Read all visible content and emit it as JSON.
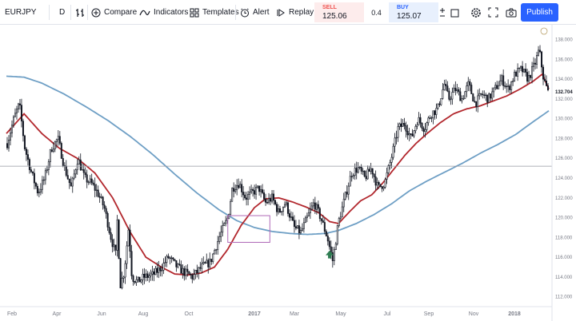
{
  "toolbar": {
    "symbol": "EURJPY",
    "interval": "D",
    "compare_label": "Compare",
    "indicators_label": "Indicators",
    "templates_label": "Templates",
    "alert_label": "Alert",
    "replay_label": "Replay",
    "publish_label": "Publish",
    "icons": [
      "bars-style-icon",
      "compare-plus-icon",
      "indicators-icon",
      "templates-icon",
      "alert-clock-icon",
      "replay-icon",
      "settings-icon",
      "fullscreen-icon",
      "camera-icon"
    ]
  },
  "trade": {
    "sell_label": "SELL",
    "sell_price": "125.06",
    "spread": "0.4",
    "buy_label": "BUY",
    "buy_price": "125.07"
  },
  "colors": {
    "sell": "#ef5350",
    "buy": "#2962ff",
    "candles": "#131722",
    "ma_fast": "#b2272d",
    "ma_slow": "#6e9fc5",
    "horizontal_line": "#9598a1",
    "rectangle": "#b069b8",
    "arrow": "#2e7d52"
  },
  "chart_data": {
    "type": "candlestick",
    "symbol": "EURJPY",
    "interval": "D",
    "title": "",
    "xlabel": "",
    "ylabel": "",
    "ylim": [
      111,
      139.5
    ],
    "y_ticks": [
      "112.000",
      "114.000",
      "116.000",
      "118.000",
      "120.000",
      "122.000",
      "124.000",
      "126.000",
      "128.000",
      "130.000",
      "132.000",
      "134.000",
      "136.000",
      "138.000"
    ],
    "x_ticks": [
      "Feb",
      "Apr",
      "Jun",
      "Aug",
      "Oct",
      "2017",
      "Mar",
      "May",
      "Jul",
      "Sep",
      "Nov",
      "2018"
    ],
    "last_price_label": "132.704",
    "price_path": [
      {
        "m": 0,
        "v": 127.5
      },
      {
        "m": 0.3,
        "v": 130
      },
      {
        "m": 0.55,
        "v": 131.5
      },
      {
        "m": 0.8,
        "v": 127
      },
      {
        "m": 1.1,
        "v": 124.5
      },
      {
        "m": 1.4,
        "v": 122.5
      },
      {
        "m": 1.7,
        "v": 124
      },
      {
        "m": 2.0,
        "v": 127
      },
      {
        "m": 2.3,
        "v": 128
      },
      {
        "m": 2.6,
        "v": 125
      },
      {
        "m": 2.9,
        "v": 123
      },
      {
        "m": 3.2,
        "v": 126
      },
      {
        "m": 3.5,
        "v": 124
      },
      {
        "m": 3.8,
        "v": 123.5
      },
      {
        "m": 4.1,
        "v": 122.5
      },
      {
        "m": 4.4,
        "v": 121
      },
      {
        "m": 4.7,
        "v": 118
      },
      {
        "m": 4.95,
        "v": 116
      },
      {
        "m": 5.0,
        "v": 121
      },
      {
        "m": 5.1,
        "v": 113
      },
      {
        "m": 5.3,
        "v": 114.5
      },
      {
        "m": 5.5,
        "v": 119
      },
      {
        "m": 5.65,
        "v": 114
      },
      {
        "m": 5.9,
        "v": 113.5
      },
      {
        "m": 6.2,
        "v": 114
      },
      {
        "m": 6.6,
        "v": 114.2
      },
      {
        "m": 7.0,
        "v": 115
      },
      {
        "m": 7.3,
        "v": 116
      },
      {
        "m": 7.7,
        "v": 115
      },
      {
        "m": 8.0,
        "v": 114.5
      },
      {
        "m": 8.4,
        "v": 114
      },
      {
        "m": 8.8,
        "v": 115
      },
      {
        "m": 9.2,
        "v": 115.5
      },
      {
        "m": 9.6,
        "v": 118
      },
      {
        "m": 10.0,
        "v": 120
      },
      {
        "m": 10.2,
        "v": 123
      },
      {
        "m": 10.5,
        "v": 123.5
      },
      {
        "m": 10.8,
        "v": 122
      },
      {
        "m": 11.1,
        "v": 122.5
      },
      {
        "m": 11.4,
        "v": 123
      },
      {
        "m": 11.7,
        "v": 121.5
      },
      {
        "m": 12.0,
        "v": 122
      },
      {
        "m": 12.3,
        "v": 120.5
      },
      {
        "m": 12.6,
        "v": 121.5
      },
      {
        "m": 13.0,
        "v": 119
      },
      {
        "m": 13.3,
        "v": 118.5
      },
      {
        "m": 13.6,
        "v": 120
      },
      {
        "m": 13.9,
        "v": 121.5
      },
      {
        "m": 14.2,
        "v": 120
      },
      {
        "m": 14.5,
        "v": 118
      },
      {
        "m": 14.75,
        "v": 115.6
      },
      {
        "m": 15.0,
        "v": 119.5
      },
      {
        "m": 15.3,
        "v": 122
      },
      {
        "m": 15.6,
        "v": 124.5
      },
      {
        "m": 15.9,
        "v": 125
      },
      {
        "m": 16.2,
        "v": 124
      },
      {
        "m": 16.5,
        "v": 125
      },
      {
        "m": 16.8,
        "v": 123
      },
      {
        "m": 17.1,
        "v": 123.5
      },
      {
        "m": 17.4,
        "v": 126
      },
      {
        "m": 17.7,
        "v": 129
      },
      {
        "m": 18.0,
        "v": 129.5
      },
      {
        "m": 18.3,
        "v": 128
      },
      {
        "m": 18.6,
        "v": 130
      },
      {
        "m": 18.9,
        "v": 129
      },
      {
        "m": 19.2,
        "v": 130.5
      },
      {
        "m": 19.5,
        "v": 131
      },
      {
        "m": 19.8,
        "v": 133.5
      },
      {
        "m": 20.0,
        "v": 132
      },
      {
        "m": 20.3,
        "v": 133
      },
      {
        "m": 20.6,
        "v": 132
      },
      {
        "m": 20.9,
        "v": 133.5
      },
      {
        "m": 21.2,
        "v": 131.5
      },
      {
        "m": 21.5,
        "v": 132.5
      },
      {
        "m": 21.8,
        "v": 132
      },
      {
        "m": 22.1,
        "v": 133
      },
      {
        "m": 22.4,
        "v": 134
      },
      {
        "m": 22.7,
        "v": 133
      },
      {
        "m": 23.0,
        "v": 134.5
      },
      {
        "m": 23.3,
        "v": 135
      },
      {
        "m": 23.6,
        "v": 134
      },
      {
        "m": 23.9,
        "v": 135.5
      },
      {
        "m": 24.1,
        "v": 137
      },
      {
        "m": 24.3,
        "v": 134
      },
      {
        "m": 24.5,
        "v": 132.7
      }
    ],
    "ma_fast_path": [
      {
        "m": 0,
        "v": 128.5
      },
      {
        "m": 0.8,
        "v": 130.5
      },
      {
        "m": 1.6,
        "v": 128.5
      },
      {
        "m": 2.4,
        "v": 127
      },
      {
        "m": 3.2,
        "v": 126
      },
      {
        "m": 4.0,
        "v": 124.5
      },
      {
        "m": 4.8,
        "v": 122
      },
      {
        "m": 5.6,
        "v": 118.5
      },
      {
        "m": 6.3,
        "v": 116
      },
      {
        "m": 7.0,
        "v": 115
      },
      {
        "m": 7.6,
        "v": 114.3
      },
      {
        "m": 8.2,
        "v": 114.2
      },
      {
        "m": 8.8,
        "v": 114.4
      },
      {
        "m": 9.4,
        "v": 115
      },
      {
        "m": 10.0,
        "v": 116.8
      },
      {
        "m": 10.6,
        "v": 119.2
      },
      {
        "m": 11.2,
        "v": 121
      },
      {
        "m": 11.7,
        "v": 121.9
      },
      {
        "m": 12.3,
        "v": 122
      },
      {
        "m": 12.9,
        "v": 121.6
      },
      {
        "m": 13.5,
        "v": 121.1
      },
      {
        "m": 14.1,
        "v": 120.5
      },
      {
        "m": 14.6,
        "v": 119.6
      },
      {
        "m": 15.0,
        "v": 119.4
      },
      {
        "m": 15.5,
        "v": 120.6
      },
      {
        "m": 16.0,
        "v": 121.7
      },
      {
        "m": 16.5,
        "v": 122.3
      },
      {
        "m": 17.0,
        "v": 123.5
      },
      {
        "m": 17.5,
        "v": 124.9
      },
      {
        "m": 18.0,
        "v": 126.3
      },
      {
        "m": 18.5,
        "v": 127.5
      },
      {
        "m": 19.0,
        "v": 128.5
      },
      {
        "m": 19.6,
        "v": 129.6
      },
      {
        "m": 20.2,
        "v": 130.5
      },
      {
        "m": 20.8,
        "v": 131
      },
      {
        "m": 21.4,
        "v": 131.3
      },
      {
        "m": 22.0,
        "v": 131.8
      },
      {
        "m": 22.6,
        "v": 132.3
      },
      {
        "m": 23.2,
        "v": 133
      },
      {
        "m": 23.8,
        "v": 133.8
      },
      {
        "m": 24.2,
        "v": 134.5
      },
      {
        "m": 24.5,
        "v": 133
      }
    ],
    "ma_slow_path": [
      {
        "m": 0,
        "v": 134.3
      },
      {
        "m": 0.8,
        "v": 134.2
      },
      {
        "m": 1.6,
        "v": 133.6
      },
      {
        "m": 2.6,
        "v": 132.5
      },
      {
        "m": 3.6,
        "v": 131.2
      },
      {
        "m": 4.6,
        "v": 129.8
      },
      {
        "m": 5.6,
        "v": 128.2
      },
      {
        "m": 6.6,
        "v": 126.4
      },
      {
        "m": 7.6,
        "v": 124.4
      },
      {
        "m": 8.6,
        "v": 122.5
      },
      {
        "m": 9.6,
        "v": 120.8
      },
      {
        "m": 10.4,
        "v": 119.7
      },
      {
        "m": 11.2,
        "v": 119
      },
      {
        "m": 12.0,
        "v": 118.6
      },
      {
        "m": 12.8,
        "v": 118.4
      },
      {
        "m": 13.6,
        "v": 118.3
      },
      {
        "m": 14.4,
        "v": 118.4
      },
      {
        "m": 15.0,
        "v": 118.7
      },
      {
        "m": 15.8,
        "v": 119.4
      },
      {
        "m": 16.6,
        "v": 120.3
      },
      {
        "m": 17.4,
        "v": 121.4
      },
      {
        "m": 18.2,
        "v": 122.7
      },
      {
        "m": 19.0,
        "v": 123.7
      },
      {
        "m": 19.8,
        "v": 124.6
      },
      {
        "m": 20.6,
        "v": 125.5
      },
      {
        "m": 21.4,
        "v": 126.5
      },
      {
        "m": 22.2,
        "v": 127.4
      },
      {
        "m": 23.0,
        "v": 128.4
      },
      {
        "m": 23.8,
        "v": 129.7
      },
      {
        "m": 24.5,
        "v": 130.8
      }
    ],
    "horizontal_line": 125.2,
    "rectangle": {
      "m_start": 10.0,
      "m_end": 11.9,
      "v_low": 117.5,
      "v_high": 120.2
    },
    "arrow": {
      "m": 14.6,
      "v": 116.2,
      "direction": "up"
    },
    "grid": false,
    "legend": "none"
  }
}
